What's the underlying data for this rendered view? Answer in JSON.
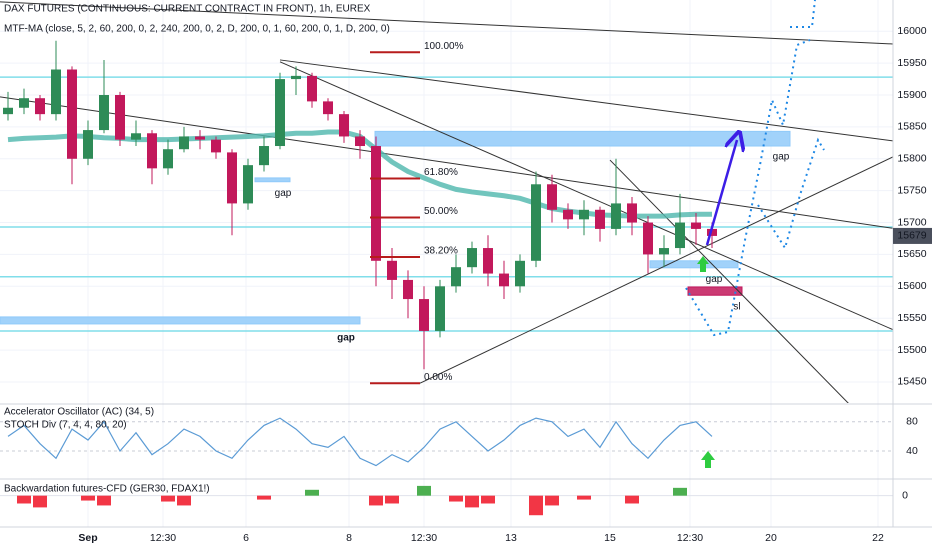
{
  "chart_data": [
    {
      "type": "candlestick",
      "title": "DAX FUTURES (CONTINUOUS: CURRENT CONTRACT IN FRONT), 1h, EUREX",
      "subtitle": "MTF-MA (close, 5, 2, 60, 200, 0, 2, 240, 200, 0, 2, D, 200, 0, 1, 60, 200, 0, 1, D, 200, 0)",
      "x": [
        2,
        6,
        10,
        14,
        18,
        22,
        26,
        30,
        34,
        38,
        42,
        46,
        50,
        54,
        58,
        62,
        66,
        70,
        74,
        78,
        82,
        86,
        90,
        94,
        98,
        102,
        106,
        110,
        114,
        118,
        122,
        126,
        130,
        134,
        138,
        142,
        146,
        150,
        154,
        158,
        162,
        166,
        170,
        174,
        178
      ],
      "open": [
        15870,
        15880,
        15895,
        15870,
        15940,
        15800,
        15845,
        15900,
        15830,
        15840,
        15785,
        15815,
        15835,
        15830,
        15810,
        15730,
        15790,
        15820,
        15925,
        15930,
        15890,
        15870,
        15835,
        15820,
        15640,
        15610,
        15580,
        15530,
        15600,
        15630,
        15660,
        15620,
        15600,
        15640,
        15760,
        15720,
        15705,
        15720,
        15690,
        15730,
        15700,
        15650,
        15660,
        15700,
        15690
      ],
      "high": [
        15905,
        15910,
        15900,
        15985,
        15945,
        15860,
        15955,
        15905,
        15860,
        15845,
        15830,
        15850,
        15845,
        15835,
        15815,
        15800,
        15835,
        15935,
        15945,
        15935,
        15895,
        15875,
        15845,
        15835,
        15660,
        15625,
        15600,
        15610,
        15650,
        15670,
        15680,
        15640,
        15650,
        15780,
        15775,
        15730,
        15735,
        15725,
        15800,
        15740,
        15710,
        15680,
        15745,
        15715,
        15700
      ],
      "low": [
        15860,
        15870,
        15860,
        15860,
        15760,
        15790,
        15840,
        15820,
        15820,
        15760,
        15775,
        15810,
        15815,
        15800,
        15680,
        15720,
        15780,
        15815,
        15900,
        15880,
        15860,
        15825,
        15800,
        15600,
        15580,
        15550,
        15470,
        15520,
        15590,
        15620,
        15600,
        15580,
        15590,
        15630,
        15700,
        15690,
        15680,
        15670,
        15680,
        15680,
        15620,
        15630,
        15650,
        15665,
        15660
      ],
      "close": [
        15880,
        15895,
        15870,
        15940,
        15800,
        15845,
        15900,
        15830,
        15840,
        15785,
        15815,
        15835,
        15830,
        15810,
        15730,
        15790,
        15820,
        15925,
        15930,
        15890,
        15870,
        15835,
        15820,
        15640,
        15610,
        15580,
        15530,
        15600,
        15630,
        15660,
        15620,
        15600,
        15640,
        15760,
        15720,
        15705,
        15720,
        15690,
        15730,
        15700,
        15650,
        15660,
        15700,
        15690,
        15679
      ],
      "up_color": "#2e8b57",
      "down_color": "#c2185b",
      "ma": {
        "color": "#4db6ac",
        "values": [
          15830,
          15832,
          15833,
          15834,
          15836,
          15835,
          15833,
          15832,
          15830,
          15830,
          15830,
          15831,
          15832,
          15833,
          15834,
          15835,
          15836,
          15838,
          15840,
          15840,
          15842,
          15842,
          15835,
          15815,
          15795,
          15780,
          15770,
          15760,
          15752,
          15748,
          15745,
          15742,
          15738,
          15730,
          15722,
          15718,
          15715,
          15712,
          15711,
          15710,
          15710,
          15710,
          15712,
          15713,
          15713
        ]
      },
      "xlim": [
        0,
        223.25
      ],
      "xticks": [
        {
          "value": 22,
          "label": "Sep"
        },
        {
          "value": 40.75,
          "label": "12:30"
        },
        {
          "value": 61.5,
          "label": "6"
        },
        {
          "value": 87.25,
          "label": "8"
        },
        {
          "value": 106,
          "label": "12:30"
        },
        {
          "value": 127.75,
          "label": "13"
        },
        {
          "value": 152.5,
          "label": "15"
        },
        {
          "value": 172.5,
          "label": "12:30"
        },
        {
          "value": 192.75,
          "label": "20"
        },
        {
          "value": 219.5,
          "label": "22"
        }
      ],
      "ylim": [
        15417,
        16049
      ],
      "yticks": [
        15450,
        15500,
        15550,
        15600,
        15650,
        15700,
        15750,
        15800,
        15850,
        15900,
        15950,
        16000
      ],
      "grid": true,
      "last_price": 15679,
      "levels": [
        15928,
        15693,
        15615,
        15530
      ],
      "level_color": "#80deea",
      "zones": [
        {
          "x": [
            93.75,
            197.5
          ],
          "y": [
            15820,
            15843
          ],
          "color": "#90caf9"
        },
        {
          "x": [
            0,
            90
          ],
          "y": [
            15541,
            15552
          ],
          "color": "#90caf9"
        },
        {
          "x": [
            63.75,
            72.5
          ],
          "y": [
            15764,
            15770
          ],
          "color": "#90caf9"
        },
        {
          "x": [
            162.5,
            184.5
          ],
          "y": [
            15629,
            15640
          ],
          "color": "#90caf9"
        },
        {
          "x": [
            172,
            185.5
          ],
          "y": [
            15586,
            15599
          ],
          "color": "#c2185b"
        }
      ],
      "trendlines": [
        [
          0,
          16046,
          223.25,
          15980
        ],
        [
          70,
          15955,
          223.25,
          15828
        ],
        [
          0,
          15897,
          223.25,
          15691
        ],
        [
          70,
          15952,
          223.25,
          15532
        ],
        [
          105,
          15448,
          223.25,
          15803
        ],
        [
          152.5,
          15798,
          212.5,
          15414
        ]
      ],
      "fib_x": [
        92.5,
        105
      ],
      "fib_color": "#b71c1c",
      "fib": [
        {
          "label": "100.00%",
          "price": 15967
        },
        {
          "label": "61.80%",
          "price": 15769
        },
        {
          "label": "50.00%",
          "price": 15708
        },
        {
          "label": "38.20%",
          "price": 15646
        },
        {
          "label": "0.00%",
          "price": 15448
        }
      ],
      "annotations": [
        {
          "text": "gap",
          "x": 70.75,
          "y": 15746,
          "color": "#8e24aa"
        },
        {
          "text": "gap",
          "x": 86.5,
          "y": 15519,
          "color": "#c2185b"
        },
        {
          "text": "gap",
          "x": 195.25,
          "y": 15803,
          "color": "#8e24aa"
        },
        {
          "text": "gap",
          "x": 178.5,
          "y": 15611,
          "color": "#8e24aa"
        },
        {
          "text": "sl",
          "x": 184.25,
          "y": 15568,
          "color": "#8e24aa"
        }
      ]
    },
    {
      "type": "line",
      "title": "Accelerator Oscillator (AC) (34, 5)",
      "series": [
        {
          "name": "STOCH Div (7, 4, 4, 80, 20)",
          "color": "#5b9bd5",
          "values": [
            60,
            75,
            50,
            30,
            70,
            55,
            80,
            40,
            65,
            35,
            50,
            70,
            60,
            40,
            30,
            55,
            75,
            85,
            70,
            50,
            45,
            60,
            30,
            20,
            35,
            25,
            45,
            70,
            80,
            60,
            40,
            55,
            75,
            85,
            80,
            60,
            70,
            45,
            80,
            50,
            30,
            55,
            75,
            80,
            60
          ]
        }
      ],
      "ylim": [
        3,
        103
      ],
      "yticks": [
        40,
        80
      ]
    },
    {
      "type": "bar",
      "title": "Backwardation futures-CFD (GER30, FDAX1!)",
      "values": [
        0,
        -8,
        -12,
        0,
        0,
        -5,
        -10,
        0,
        0,
        0,
        -6,
        -10,
        0,
        0,
        0,
        0,
        -4,
        0,
        0,
        6,
        0,
        0,
        0,
        -10,
        -8,
        0,
        10,
        0,
        -6,
        -12,
        -8,
        0,
        0,
        -20,
        -10,
        0,
        -4,
        0,
        0,
        -8,
        0,
        0,
        8,
        0,
        0
      ],
      "positive_color": "#4caf50",
      "negative_color": "#f23645",
      "ylim": [
        -30,
        15
      ],
      "yticks": [
        0
      ]
    }
  ]
}
